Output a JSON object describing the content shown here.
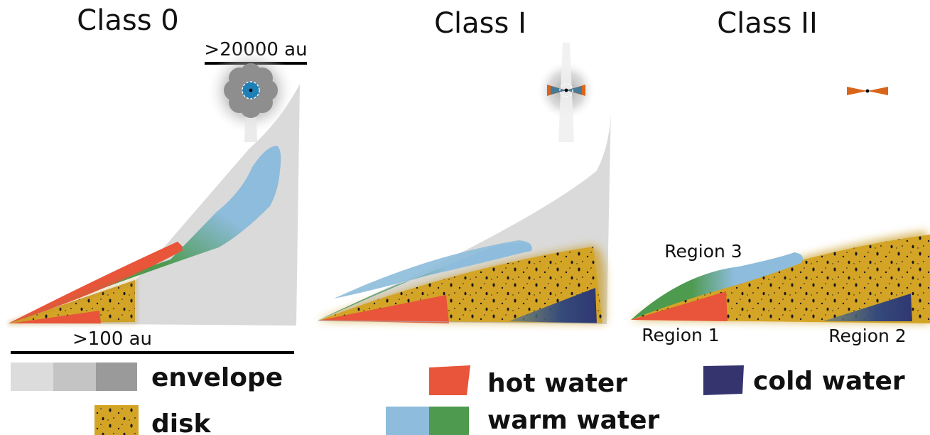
{
  "panels": {
    "class0": {
      "title": "Class 0",
      "envelope_scale": ">20000 au",
      "disk_scale": ">100 au"
    },
    "class1": {
      "title": "Class I"
    },
    "class2": {
      "title": "Class II",
      "region1": "Region 1",
      "region2": "Region 2",
      "region3": "Region 3"
    }
  },
  "legend": {
    "envelope": "envelope",
    "disk": "disk",
    "hot_water": "hot water",
    "warm_water": "warm water",
    "cold_water": "cold water"
  },
  "colors": {
    "hot": "#e8553a",
    "warm_blue": "#8dbcdc",
    "warm_green": "#4e9a4f",
    "cold": "#35346e",
    "disk": "#d4a426",
    "envelope_light": "#dcdcdc",
    "envelope_mid": "#c4c4c4",
    "envelope_dark": "#9a9a9a"
  }
}
